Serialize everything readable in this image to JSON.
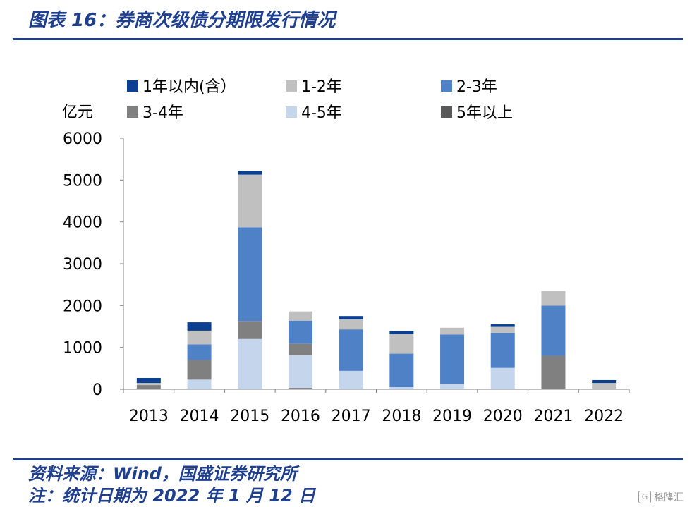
{
  "header": {
    "title": "图表 16：券商次级债分期限发行情况"
  },
  "footer": {
    "source": "资料来源：Wind，国盛证券研究所",
    "note": "注：统计日期为 2022 年 1 月 12 日"
  },
  "watermark": {
    "text": "格隆汇",
    "icon": "gelonghui-logo-icon"
  },
  "chart_data": {
    "type": "bar",
    "stacked": true,
    "ylabel": "亿元",
    "ylim": [
      0,
      6000
    ],
    "yticks": [
      0,
      1000,
      2000,
      3000,
      4000,
      5000,
      6000
    ],
    "categories": [
      "2013",
      "2014",
      "2015",
      "2016",
      "2017",
      "2018",
      "2019",
      "2020",
      "2021",
      "2022"
    ],
    "legend_position": "top",
    "grid": false,
    "series": [
      {
        "name": "5年以上",
        "color": "#595959",
        "values": [
          0,
          0,
          0,
          30,
          0,
          0,
          0,
          0,
          0,
          0
        ]
      },
      {
        "name": "4-5年",
        "color": "#c5d5ec",
        "values": [
          0,
          230,
          1200,
          780,
          440,
          50,
          130,
          510,
          0,
          0
        ]
      },
      {
        "name": "3-4年",
        "color": "#808080",
        "values": [
          100,
          470,
          430,
          280,
          0,
          0,
          0,
          0,
          800,
          0
        ]
      },
      {
        "name": "2-3年",
        "color": "#4f81c7",
        "values": [
          0,
          370,
          2240,
          550,
          990,
          800,
          1180,
          840,
          1200,
          0
        ]
      },
      {
        "name": "1-2年",
        "color": "#c0c0c0",
        "values": [
          50,
          330,
          1260,
          220,
          240,
          470,
          160,
          140,
          350,
          150
        ]
      },
      {
        "name": "1年以内(含）",
        "color": "#0b3f91",
        "values": [
          120,
          200,
          90,
          0,
          80,
          70,
          0,
          60,
          0,
          70
        ]
      }
    ],
    "legend_order": [
      "1年以内(含）",
      "1-2年",
      "2-3年",
      "3-4年",
      "4-5年",
      "5年以上"
    ]
  }
}
